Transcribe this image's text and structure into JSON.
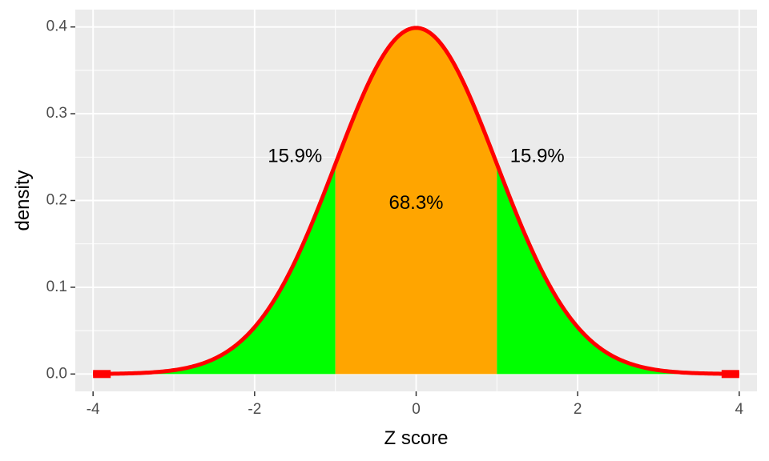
{
  "chart_data": {
    "type": "area",
    "title": "",
    "xlabel": "Z score",
    "ylabel": "density",
    "xlim": [
      -4.22,
      4.22
    ],
    "ylim": [
      -0.02,
      0.42
    ],
    "x_ticks": [
      -4,
      -2,
      0,
      2,
      4
    ],
    "x_tick_labels": [
      "-4",
      "-2",
      "0",
      "2",
      "4"
    ],
    "y_ticks": [
      0.0,
      0.1,
      0.2,
      0.3,
      0.4
    ],
    "y_tick_labels": [
      "0.0",
      "0.1",
      "0.2",
      "0.3",
      "0.4"
    ],
    "grid": true,
    "legend": "none",
    "curve": {
      "distribution": "standard normal",
      "x_range": [
        -4,
        4
      ],
      "color": "#ff0000"
    },
    "regions": [
      {
        "x_range": [
          -4,
          -1
        ],
        "color": "#00ff00"
      },
      {
        "x_range": [
          -1,
          1
        ],
        "color": "#ffa500"
      },
      {
        "x_range": [
          1,
          4
        ],
        "color": "#00ff00"
      }
    ],
    "annotations": [
      {
        "text": "15.9%",
        "x": -1.5,
        "y": 0.25
      },
      {
        "text": "68.3%",
        "x": 0,
        "y": 0.196
      },
      {
        "text": "15.9%",
        "x": 1.5,
        "y": 0.25
      }
    ],
    "colors": {
      "panel_background": "#ebebeb",
      "grid_major": "#ffffff",
      "tick_text": "#4d4d4d",
      "axis_ticks": "#333333"
    }
  }
}
